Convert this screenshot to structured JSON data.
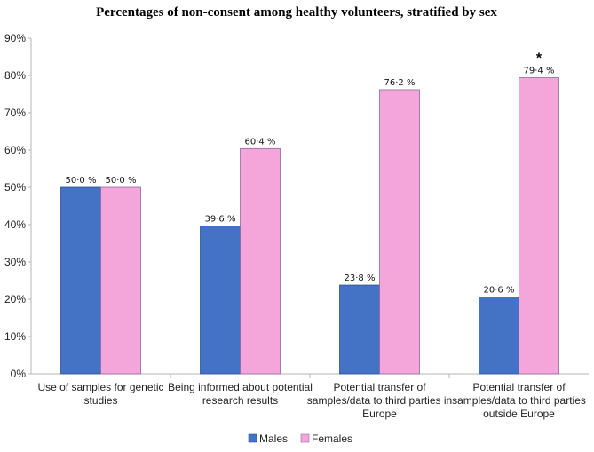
{
  "chart_data": {
    "type": "bar",
    "title": "Percentages of non-consent among healthy volunteers, stratified by sex",
    "xlabel": "",
    "ylabel": "",
    "ylim": [
      0,
      90
    ],
    "yticks": [
      "0%",
      "10%",
      "20%",
      "30%",
      "40%",
      "50%",
      "60%",
      "70%",
      "80%",
      "90%"
    ],
    "categories": [
      [
        "Use of samples for genetic",
        "studies"
      ],
      [
        "Being informed about potential",
        "research results"
      ],
      [
        "Potential transfer of",
        "samples/data to third parties in",
        "Europe"
      ],
      [
        "Potential transfer of",
        "samples/data to third parties",
        "outside Europe"
      ]
    ],
    "series": [
      {
        "name": "Males",
        "color": "#4472C4",
        "values": [
          50.0,
          39.6,
          23.8,
          20.6
        ],
        "labels": [
          "50·0 %",
          "39·6 %",
          "23·8 %",
          "20·6 %"
        ]
      },
      {
        "name": "Females",
        "color": "#F4A6DA",
        "values": [
          50.0,
          60.4,
          76.2,
          79.4
        ],
        "labels": [
          "50·0 %",
          "60·4 %",
          "76·2 %",
          "79·4 %"
        ]
      }
    ],
    "annotations": [
      {
        "text": "*",
        "category_index": 3,
        "series_index": 1
      }
    ],
    "legend": {
      "position": "bottom"
    },
    "grid": false
  }
}
